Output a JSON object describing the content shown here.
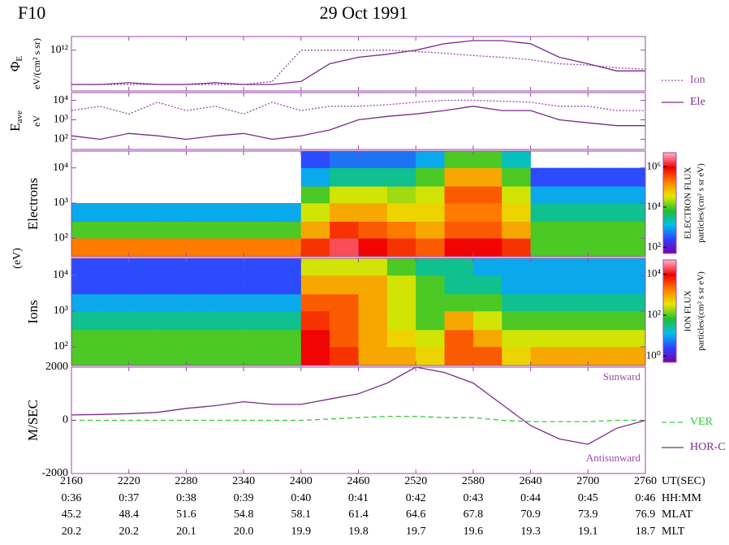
{
  "header": {
    "satellite": "F10",
    "date": "29 Oct 1991"
  },
  "energy_label": "(eV)",
  "x_axis": {
    "name": "UT(SEC)",
    "xlim": [
      2160,
      2760
    ],
    "xticks": [
      2160,
      2220,
      2280,
      2340,
      2400,
      2460,
      2520,
      2580,
      2640,
      2700,
      2760
    ],
    "rows": [
      {
        "name": "HH:MM",
        "labels": [
          "0:36",
          "0:37",
          "0:38",
          "0:39",
          "0:40",
          "0:41",
          "0:42",
          "0:43",
          "0:44",
          "0:45",
          "0:46"
        ]
      },
      {
        "name": "MLAT",
        "labels": [
          "45.2",
          "48.4",
          "51.6",
          "54.8",
          "58.1",
          "61.4",
          "64.6",
          "67.8",
          "70.9",
          "73.9",
          "76.9"
        ]
      },
      {
        "name": "MLT",
        "labels": [
          "20.2",
          "20.2",
          "20.1",
          "20.0",
          "19.9",
          "19.8",
          "19.7",
          "19.6",
          "19.3",
          "19.1",
          "18.7"
        ]
      }
    ]
  },
  "chart_data": [
    {
      "type": "line",
      "ylabel": "Φ",
      "ylabel_sub": "E",
      "yunit": "eV/(cm² s sr)",
      "log": true,
      "ylim": [
        1000000000.0,
        10000000000000.0
      ],
      "yticks": [
        {
          "value": 1000000000000.0,
          "label": "10¹²"
        }
      ],
      "legend": "right",
      "x": [
        2160,
        2190,
        2220,
        2250,
        2280,
        2310,
        2340,
        2370,
        2400,
        2430,
        2460,
        2490,
        2520,
        2550,
        2580,
        2610,
        2640,
        2670,
        2700,
        2730,
        2760
      ],
      "series": [
        {
          "name": "Ion",
          "color": "#9a4aaa",
          "style": "dotted",
          "values": [
            3000000000.0,
            3000000000.0,
            3000000000.0,
            3000000000.0,
            3000000000.0,
            3000000000.0,
            3000000000.0,
            5000000000.0,
            1000000000000.0,
            1000000000000.0,
            1000000000000.0,
            1000000000000.0,
            800000000000.0,
            600000000000.0,
            400000000000.0,
            300000000000.0,
            200000000000.0,
            100000000000.0,
            80000000000.0,
            50000000000.0,
            40000000000.0
          ]
        },
        {
          "name": "Ele",
          "color": "#7a2a8a",
          "style": "solid",
          "values": [
            3000000000.0,
            3000000000.0,
            4000000000.0,
            3000000000.0,
            3000000000.0,
            4000000000.0,
            3000000000.0,
            3000000000.0,
            5000000000.0,
            100000000000.0,
            300000000000.0,
            500000000000.0,
            1000000000000.0,
            3000000000000.0,
            5000000000000.0,
            5000000000000.0,
            3000000000000.0,
            300000000000.0,
            100000000000.0,
            30000000000.0,
            30000000000.0
          ]
        }
      ]
    },
    {
      "type": "line",
      "ylabel": "E",
      "ylabel_sub": "ave",
      "yunit": "eV",
      "log": true,
      "ylim": [
        30,
        25000
      ],
      "yticks": [
        {
          "value": 100,
          "label": "10²"
        },
        {
          "value": 1000,
          "label": "10³"
        },
        {
          "value": 10000,
          "label": "10⁴"
        }
      ],
      "x": [
        2160,
        2190,
        2220,
        2250,
        2280,
        2310,
        2340,
        2370,
        2400,
        2430,
        2460,
        2490,
        2520,
        2550,
        2580,
        2610,
        2640,
        2670,
        2700,
        2730,
        2760
      ],
      "series": [
        {
          "color": "#9a4aaa",
          "style": "dotted",
          "values": [
            3000,
            5000,
            2000,
            8000,
            3000,
            5000,
            2000,
            8000,
            3000,
            5000,
            5000,
            6000,
            8000,
            10000,
            10000,
            9000,
            8000,
            5000,
            5000,
            3000,
            3000
          ]
        },
        {
          "color": "#7a2a8a",
          "style": "solid",
          "values": [
            150,
            100,
            200,
            150,
            100,
            150,
            200,
            100,
            150,
            300,
            1000,
            1500,
            2000,
            3000,
            5000,
            3000,
            3000,
            1000,
            700,
            500,
            500
          ]
        }
      ]
    },
    {
      "type": "heatmap",
      "ylabel": "Electrons",
      "log": true,
      "ylim": [
        30,
        30000
      ],
      "yticks": [
        {
          "value": 100,
          "label": "10²"
        },
        {
          "value": 1000,
          "label": "10³"
        },
        {
          "value": 10000,
          "label": "10⁴"
        }
      ],
      "x_bins": [
        2160,
        2190,
        2220,
        2250,
        2280,
        2310,
        2340,
        2370,
        2400,
        2430,
        2460,
        2490,
        2520,
        2550,
        2580,
        2610,
        2640,
        2670,
        2700,
        2730,
        2760
      ],
      "y_bins": [
        30,
        100,
        300,
        1000,
        3000,
        10000,
        30000
      ],
      "z": [
        [
          200000.0,
          200000.0,
          200000.0,
          200000.0,
          200000.0,
          200000.0,
          200000.0,
          200000.0,
          500000.0,
          2000000.0,
          1000000.0,
          500000.0,
          300000.0,
          1000000.0,
          1000000.0,
          500000.0,
          10000.0,
          10000.0,
          10000.0,
          10000.0
        ],
        [
          10000.0,
          10000.0,
          10000.0,
          10000.0,
          10000.0,
          10000.0,
          10000.0,
          10000.0,
          100000.0,
          500000.0,
          300000.0,
          200000.0,
          100000.0,
          300000.0,
          300000.0,
          100000.0,
          10000.0,
          10000.0,
          10000.0,
          10000.0
        ],
        [
          1000.0,
          1000.0,
          1000.0,
          1000.0,
          1000.0,
          1000.0,
          1000.0,
          1000.0,
          30000.0,
          100000.0,
          100000.0,
          50000.0,
          50000.0,
          200000.0,
          200000.0,
          50000.0,
          3000.0,
          3000.0,
          3000.0,
          3000.0
        ],
        [
          null,
          null,
          null,
          null,
          null,
          null,
          null,
          null,
          10000.0,
          30000.0,
          30000.0,
          20000.0,
          30000.0,
          300000.0,
          300000.0,
          30000.0,
          1000.0,
          1000.0,
          1000.0,
          1000.0
        ],
        [
          null,
          null,
          null,
          null,
          null,
          null,
          null,
          null,
          1000.0,
          3000.0,
          3000.0,
          3000.0,
          10000.0,
          100000.0,
          100000.0,
          10000.0,
          300,
          300,
          300,
          300
        ],
        [
          null,
          null,
          null,
          null,
          null,
          null,
          null,
          null,
          300,
          500,
          500,
          500,
          1000.0,
          10000.0,
          10000.0,
          2000.0,
          null,
          null,
          null,
          null
        ]
      ],
      "colorbar": {
        "label": "ELECTRON FLUX",
        "unit": "particles/(cm² s sr eV)",
        "log": true,
        "lim": [
          50,
          5000000.0
        ],
        "ticks": [
          {
            "value": 100,
            "label": "10²"
          },
          {
            "value": 10000,
            "label": "10⁴"
          },
          {
            "value": 1000000,
            "label": "10⁶"
          }
        ]
      }
    },
    {
      "type": "heatmap",
      "ylabel": "Ions",
      "log": true,
      "ylim": [
        30,
        30000
      ],
      "yticks": [
        {
          "value": 100,
          "label": "10²"
        },
        {
          "value": 1000,
          "label": "10³"
        },
        {
          "value": 10000,
          "label": "10⁴"
        }
      ],
      "x_bins": [
        2160,
        2190,
        2220,
        2250,
        2280,
        2310,
        2340,
        2370,
        2400,
        2430,
        2460,
        2490,
        2520,
        2550,
        2580,
        2610,
        2640,
        2670,
        2700,
        2730,
        2760
      ],
      "y_bins": [
        30,
        100,
        300,
        1000,
        3000,
        10000,
        30000
      ],
      "z": [
        [
          100,
          100,
          100,
          100,
          100,
          100,
          100,
          100,
          10000.0,
          5000.0,
          1000.0,
          1000.0,
          500,
          3000.0,
          3000.0,
          500,
          1000.0,
          1000.0,
          1000.0,
          1000.0
        ],
        [
          100,
          100,
          100,
          100,
          100,
          100,
          100,
          100,
          10000.0,
          3000.0,
          1000.0,
          500,
          300,
          3000.0,
          1000.0,
          300,
          300,
          300,
          300,
          300
        ],
        [
          30,
          30,
          30,
          30,
          30,
          30,
          30,
          30,
          5000.0,
          3000.0,
          1000.0,
          300,
          100,
          1000.0,
          300,
          100,
          100,
          100,
          100,
          100
        ],
        [
          10,
          10,
          10,
          10,
          10,
          10,
          10,
          10,
          3000.0,
          3000.0,
          1000.0,
          300,
          100,
          100,
          100,
          30,
          30,
          30,
          30,
          30
        ],
        [
          3,
          3,
          3,
          3,
          3,
          3,
          3,
          3,
          1000.0,
          1000.0,
          1000.0,
          300,
          100,
          30,
          30,
          10,
          10,
          10,
          10,
          10
        ],
        [
          3,
          3,
          3,
          3,
          3,
          3,
          3,
          3,
          300,
          300,
          300,
          100,
          30,
          30,
          10,
          10,
          10,
          10,
          10,
          10
        ]
      ],
      "colorbar": {
        "label": "ION FLUX",
        "unit": "particles/(cm² s sr eV)",
        "log": true,
        "lim": [
          0.5,
          50000
        ],
        "ticks": [
          {
            "value": 1,
            "label": "10⁰"
          },
          {
            "value": 100,
            "label": "10²"
          },
          {
            "value": 10000,
            "label": "10⁴"
          }
        ]
      }
    },
    {
      "type": "line",
      "ylabel": "M/SEC",
      "ylim": [
        -2000,
        2000
      ],
      "yticks": [
        -2000,
        0,
        2000
      ],
      "legend": "right",
      "annotations": [
        "Sunward",
        "Antisunward"
      ],
      "x": [
        2160,
        2190,
        2220,
        2250,
        2280,
        2310,
        2340,
        2370,
        2400,
        2430,
        2460,
        2490,
        2520,
        2550,
        2580,
        2610,
        2640,
        2670,
        2700,
        2730,
        2760
      ],
      "series": [
        {
          "name": "VER",
          "color": "#33cc33",
          "style": "dashed",
          "values": [
            0,
            0,
            0,
            0,
            0,
            0,
            0,
            0,
            0,
            50,
            100,
            150,
            150,
            100,
            100,
            0,
            -50,
            -50,
            -50,
            0,
            0
          ]
        },
        {
          "name": "HOR-C",
          "color": "#7a2a8a",
          "style": "solid",
          "values": [
            200,
            220,
            250,
            300,
            450,
            550,
            700,
            600,
            600,
            800,
            1000,
            1400,
            2000,
            1800,
            1400,
            600,
            -200,
            -700,
            -900,
            -300,
            0
          ]
        }
      ]
    }
  ]
}
